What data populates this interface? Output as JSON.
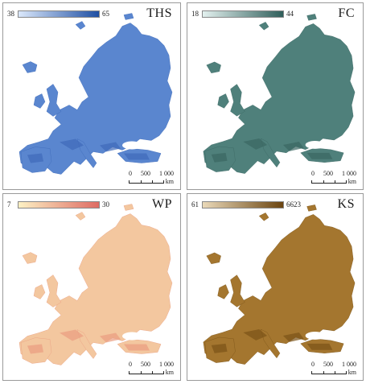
{
  "panels": [
    {
      "id": "ths",
      "title": "THS",
      "legend_min": "38",
      "legend_max": "65",
      "color_low": "#dbe8fb",
      "color_high": "#1f4fa3",
      "map_fill": "#5a86cf",
      "map_accent": "#3e6ab9",
      "scale_labels": [
        "0",
        "500",
        "1 000"
      ],
      "scale_unit": "km"
    },
    {
      "id": "fc",
      "title": "FC",
      "legend_min": "18",
      "legend_max": "44",
      "color_low": "#e3f1ef",
      "color_high": "#2f5e5a",
      "map_fill": "#4f807b",
      "map_accent": "#3b6763",
      "scale_labels": [
        "0",
        "500",
        "1 000"
      ],
      "scale_unit": "km"
    },
    {
      "id": "wp",
      "title": "WP",
      "legend_min": "7",
      "legend_max": "30",
      "color_low": "#fdf1c4",
      "color_high": "#de6b63",
      "map_fill": "#f3c79f",
      "map_accent": "#ea9d80",
      "scale_labels": [
        "0",
        "500",
        "1 000"
      ],
      "scale_unit": "km"
    },
    {
      "id": "ks",
      "title": "KS",
      "legend_min": "61",
      "legend_max": "6623",
      "color_low": "#ead9b9",
      "color_high": "#6a4410",
      "map_fill": "#a4762f",
      "map_accent": "#7a5217",
      "scale_labels": [
        "0",
        "500",
        "1 000"
      ],
      "scale_unit": "km"
    }
  ]
}
